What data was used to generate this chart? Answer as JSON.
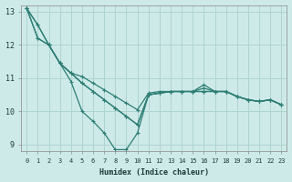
{
  "xlabel": "Humidex (Indice chaleur)",
  "background_color": "#ceeae8",
  "grid_color": "#aed4d0",
  "line_color": "#2d7e74",
  "xlim": [
    -0.5,
    23.5
  ],
  "ylim": [
    8.8,
    13.2
  ],
  "yticks": [
    9,
    10,
    11,
    12,
    13
  ],
  "xticks": [
    0,
    1,
    2,
    3,
    4,
    5,
    6,
    7,
    8,
    9,
    10,
    11,
    12,
    13,
    14,
    15,
    16,
    17,
    18,
    19,
    20,
    21,
    22,
    23
  ],
  "series": [
    [
      13.1,
      12.6,
      12.0,
      11.45,
      11.15,
      10.85,
      10.6,
      10.35,
      10.1,
      9.85,
      9.6,
      10.5,
      10.55,
      10.6,
      10.6,
      10.6,
      10.6,
      10.6,
      10.6,
      10.45,
      10.35,
      10.3,
      10.35,
      10.2
    ],
    [
      13.1,
      12.6,
      12.0,
      11.45,
      11.15,
      10.85,
      10.6,
      10.35,
      10.1,
      9.85,
      9.6,
      10.5,
      10.55,
      10.6,
      10.6,
      10.6,
      10.6,
      10.6,
      10.6,
      10.45,
      10.35,
      10.3,
      10.35,
      10.2
    ],
    [
      13.1,
      12.2,
      12.0,
      11.45,
      11.15,
      11.05,
      10.85,
      10.65,
      10.45,
      10.25,
      10.05,
      10.55,
      10.6,
      10.6,
      10.6,
      10.6,
      10.7,
      10.6,
      10.6,
      10.45,
      10.35,
      10.3,
      10.35,
      10.2
    ],
    [
      13.1,
      12.2,
      12.0,
      11.45,
      10.9,
      10.0,
      9.7,
      9.35,
      8.85,
      8.85,
      9.35,
      10.5,
      10.55,
      10.6,
      10.6,
      10.6,
      10.8,
      10.6,
      10.6,
      10.45,
      10.35,
      10.3,
      10.35,
      10.2
    ]
  ]
}
